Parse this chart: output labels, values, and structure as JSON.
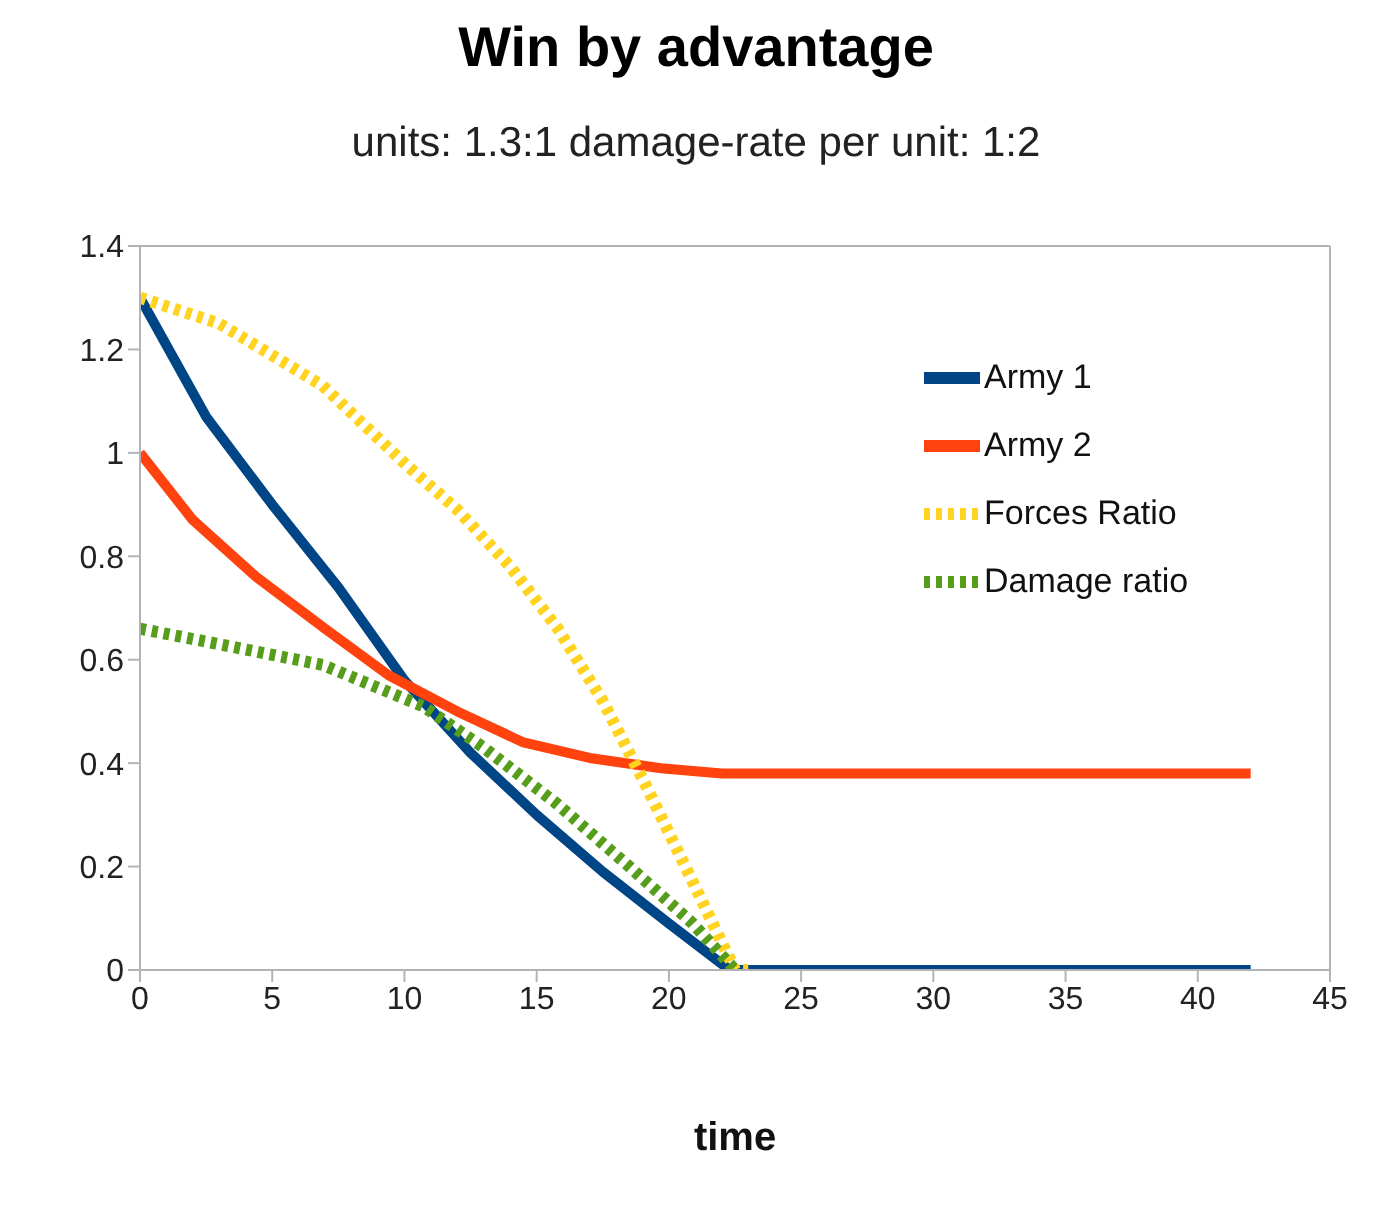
{
  "chart_data": {
    "type": "line",
    "title": "Win by advantage",
    "subtitle": "units: 1.3:1 damage-rate per unit: 1:2",
    "xlabel": "time",
    "xlim": [
      0,
      45
    ],
    "xticks": [
      0,
      5,
      10,
      15,
      20,
      25,
      30,
      35,
      40,
      45
    ],
    "ylim": [
      0,
      1.4
    ],
    "yticks": [
      0,
      0.2,
      0.4,
      0.6,
      0.8,
      1,
      1.2,
      1.4
    ],
    "legend": "top right",
    "marker": "none",
    "series": [
      {
        "name": "Army 1",
        "color": "#004586",
        "line_style": "solid",
        "x": [
          0,
          2.5,
          5,
          7.5,
          10,
          12.5,
          15,
          17.5,
          20,
          22.3,
          42
        ],
        "values": [
          1.3,
          1.07,
          0.9,
          0.74,
          0.56,
          0.42,
          0.3,
          0.19,
          0.09,
          0,
          0
        ]
      },
      {
        "name": "Army 2",
        "color": "#ff420e",
        "line_style": "solid",
        "x": [
          0,
          2,
          4.4,
          7,
          9.4,
          12,
          14.5,
          17,
          19.7,
          22,
          42
        ],
        "values": [
          1,
          0.87,
          0.76,
          0.66,
          0.57,
          0.5,
          0.44,
          0.41,
          0.39,
          0.38,
          0.38
        ]
      },
      {
        "name": "Forces Ratio",
        "color": "#ffd320",
        "line_style": "dotted",
        "x": [
          0,
          3,
          6.9,
          10,
          12,
          14,
          15.8,
          17.5,
          19.1,
          21,
          22.5,
          23
        ],
        "values": [
          1.3,
          1.25,
          1.13,
          0.98,
          0.89,
          0.78,
          0.66,
          0.52,
          0.36,
          0.16,
          0,
          0
        ]
      },
      {
        "name": "Damage ratio",
        "color": "#579d1c",
        "line_style": "dotted",
        "x": [
          0,
          3,
          6.9,
          10.7,
          13,
          15.8,
          18.5,
          20.9,
          22.5
        ],
        "values": [
          0.66,
          0.63,
          0.59,
          0.51,
          0.43,
          0.32,
          0.2,
          0.09,
          0
        ]
      }
    ]
  }
}
